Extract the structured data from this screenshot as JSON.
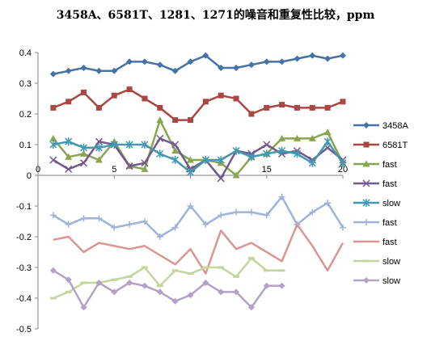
{
  "chart_data": {
    "type": "line",
    "title": "3458A、6581T、1281、1271的噪音和重复性比较，ppm",
    "xlabel": "",
    "ylabel": "",
    "xlim": [
      0,
      20
    ],
    "ylim": [
      -0.5,
      0.4
    ],
    "xticks": [
      0,
      5,
      10,
      15,
      20
    ],
    "yticks": [
      0.4,
      0.3,
      0.2,
      0.1,
      0,
      -0.1,
      -0.2,
      -0.3,
      -0.4,
      -0.5
    ],
    "x_tick_labels": [
      "0",
      "5",
      "10",
      "15",
      "20"
    ],
    "y_tick_labels": [
      "0.4",
      "0.3",
      "0.2",
      "0.1",
      "0",
      "-0.1",
      "-0.2",
      "-0.3",
      "-0.4",
      "-0.5"
    ],
    "grid": false,
    "legend_position": "right",
    "series": [
      {
        "name": "3458A",
        "color": "#4572A7",
        "marker": "diamond",
        "x": [
          1,
          2,
          3,
          4,
          5,
          6,
          7,
          8,
          9,
          10,
          11,
          12,
          13,
          14,
          15,
          16,
          17,
          18,
          19,
          20
        ],
        "values": [
          0.33,
          0.34,
          0.35,
          0.34,
          0.34,
          0.37,
          0.37,
          0.36,
          0.34,
          0.37,
          0.39,
          0.35,
          0.35,
          0.36,
          0.37,
          0.37,
          0.38,
          0.39,
          0.38,
          0.39
        ]
      },
      {
        "name": "6581T",
        "color": "#AA4643",
        "marker": "square",
        "x": [
          1,
          2,
          3,
          4,
          5,
          6,
          7,
          8,
          9,
          10,
          11,
          12,
          13,
          14,
          15,
          16,
          17,
          18,
          19,
          20
        ],
        "values": [
          0.22,
          0.24,
          0.27,
          0.22,
          0.26,
          0.28,
          0.25,
          0.22,
          0.18,
          0.18,
          0.24,
          0.26,
          0.25,
          0.2,
          0.22,
          0.23,
          0.22,
          0.22,
          0.22,
          0.24
        ]
      },
      {
        "name": "fast",
        "color": "#89A54E",
        "marker": "triangle",
        "x": [
          1,
          2,
          3,
          4,
          5,
          6,
          7,
          8,
          9,
          10,
          11,
          12,
          13,
          14,
          15,
          16,
          17,
          18,
          19,
          20
        ],
        "values": [
          0.12,
          0.06,
          0.07,
          0.05,
          0.11,
          0.03,
          0.02,
          0.18,
          0.08,
          0.05,
          0.05,
          0.04,
          0.0,
          0.06,
          0.07,
          0.12,
          0.12,
          0.12,
          0.14,
          0.04
        ]
      },
      {
        "name": "fast",
        "color": "#71588F",
        "marker": "x",
        "x": [
          1,
          2,
          3,
          4,
          5,
          6,
          7,
          8,
          9,
          10,
          11,
          12,
          13,
          14,
          15,
          16,
          17,
          18,
          19,
          20
        ],
        "values": [
          0.05,
          0.02,
          0.04,
          0.11,
          0.1,
          0.03,
          0.04,
          0.12,
          0.1,
          0.02,
          0.05,
          -0.01,
          0.08,
          0.07,
          0.1,
          0.07,
          0.08,
          0.05,
          0.09,
          0.05
        ]
      },
      {
        "name": "slow",
        "color": "#4198AF",
        "marker": "star",
        "x": [
          1,
          2,
          3,
          4,
          5,
          6,
          7,
          8,
          9,
          10,
          11,
          12,
          13,
          14,
          15,
          16,
          17,
          18,
          19,
          20
        ],
        "values": [
          0.1,
          0.11,
          0.09,
          0.09,
          0.1,
          0.1,
          0.1,
          0.07,
          0.05,
          0.01,
          0.05,
          0.05,
          0.08,
          0.06,
          0.07,
          0.08,
          0.07,
          0.04,
          0.11,
          0.04
        ]
      },
      {
        "name": "fast",
        "color": "#9FB3D9",
        "marker": "plus",
        "x": [
          1,
          2,
          3,
          4,
          5,
          6,
          7,
          8,
          9,
          10,
          11,
          12,
          13,
          14,
          15,
          16,
          17,
          18,
          19,
          20
        ],
        "values": [
          -0.13,
          -0.16,
          -0.14,
          -0.14,
          -0.17,
          -0.16,
          -0.15,
          -0.2,
          -0.17,
          -0.1,
          -0.16,
          -0.13,
          -0.12,
          -0.12,
          -0.13,
          -0.07,
          -0.16,
          -0.12,
          -0.09,
          -0.17
        ]
      },
      {
        "name": "fast",
        "color": "#DB9593",
        "marker": "none",
        "x": [
          1,
          2,
          3,
          4,
          5,
          6,
          7,
          8,
          9,
          10,
          11,
          12,
          13,
          14,
          15,
          16,
          17,
          18,
          19,
          20
        ],
        "values": [
          -0.21,
          -0.2,
          -0.25,
          -0.22,
          -0.23,
          -0.24,
          -0.23,
          -0.26,
          -0.29,
          -0.24,
          -0.32,
          -0.18,
          -0.24,
          -0.22,
          -0.25,
          -0.28,
          -0.16,
          -0.23,
          -0.31,
          -0.22
        ]
      },
      {
        "name": "slow",
        "color": "#C3D69B",
        "marker": "dash",
        "x": [
          1,
          2,
          3,
          4,
          5,
          6,
          7,
          8,
          9,
          10,
          11,
          12,
          13,
          14,
          15,
          16
        ],
        "values": [
          -0.4,
          -0.38,
          -0.35,
          -0.35,
          -0.34,
          -0.33,
          -0.3,
          -0.36,
          -0.31,
          -0.32,
          -0.3,
          -0.3,
          -0.33,
          -0.27,
          -0.31,
          -0.31
        ]
      },
      {
        "name": "slow",
        "color": "#B3A2C7",
        "marker": "diamond",
        "x": [
          1,
          2,
          3,
          4,
          5,
          6,
          7,
          8,
          9,
          10,
          11,
          12,
          13,
          14,
          15,
          16
        ],
        "values": [
          -0.31,
          -0.34,
          -0.43,
          -0.35,
          -0.38,
          -0.35,
          -0.36,
          -0.38,
          -0.41,
          -0.39,
          -0.35,
          -0.38,
          -0.38,
          -0.43,
          -0.36,
          -0.36
        ]
      }
    ]
  }
}
